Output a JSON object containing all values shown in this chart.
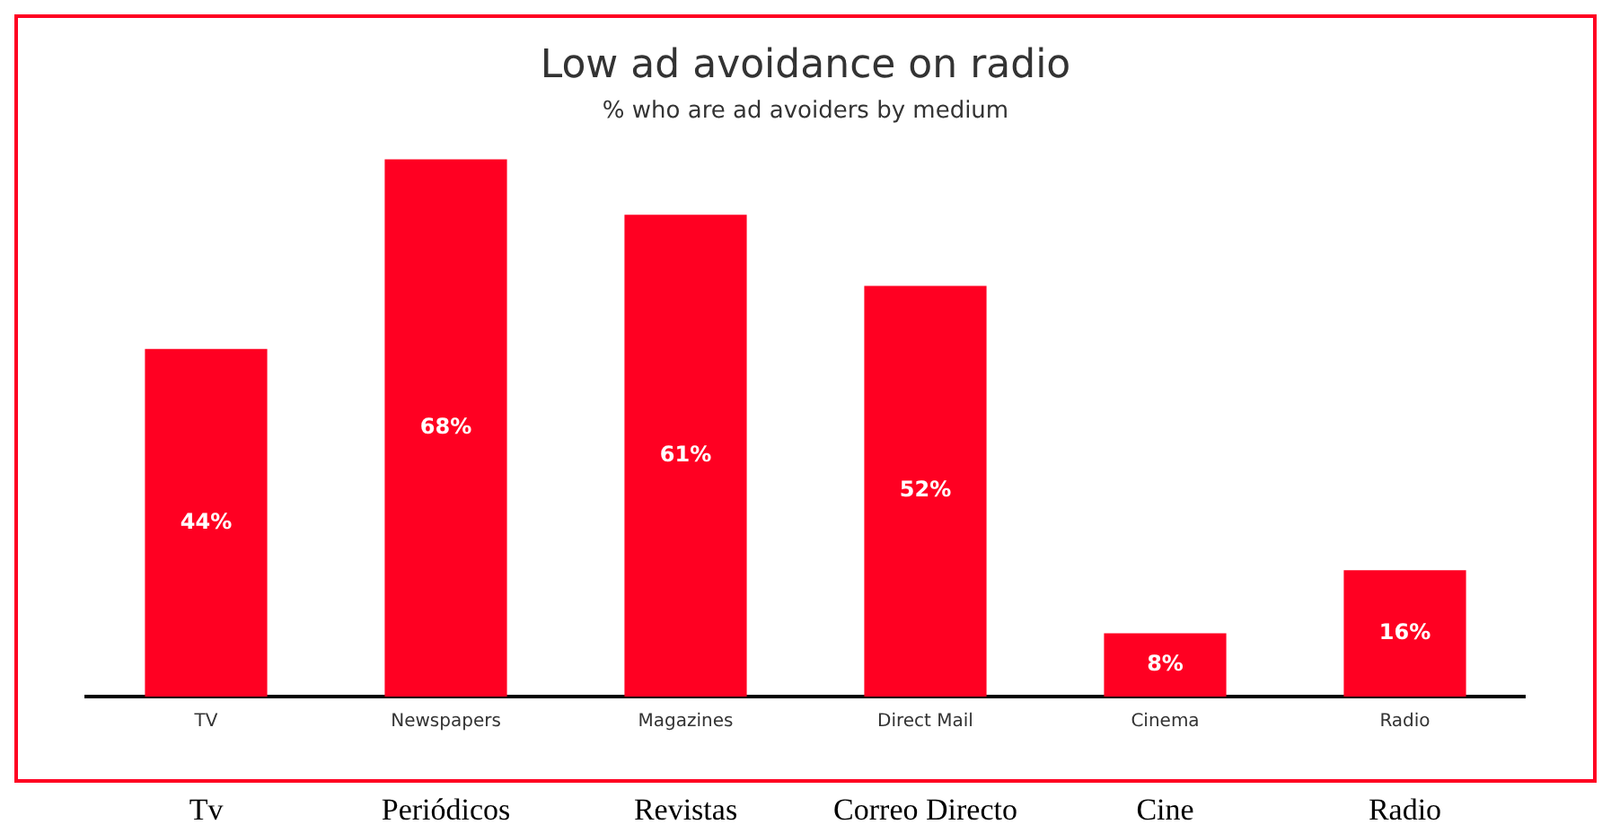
{
  "chart_data": {
    "type": "bar",
    "title": "Low ad avoidance on radio",
    "subtitle": "% who are ad avoiders by medium",
    "categories": [
      "TV",
      "Newspapers",
      "Magazines",
      "Direct Mail",
      "Cinema",
      "Radio"
    ],
    "values": [
      44,
      68,
      61,
      52,
      8,
      16
    ],
    "value_labels": [
      "44%",
      "68%",
      "61%",
      "52%",
      "8%",
      "16%"
    ],
    "color": "#ff0022",
    "annotations": [
      "Tv",
      "Periódicos",
      "Revistas",
      "Correo Directo",
      "Cine",
      "Radio"
    ],
    "grid": false,
    "legend": false
  }
}
